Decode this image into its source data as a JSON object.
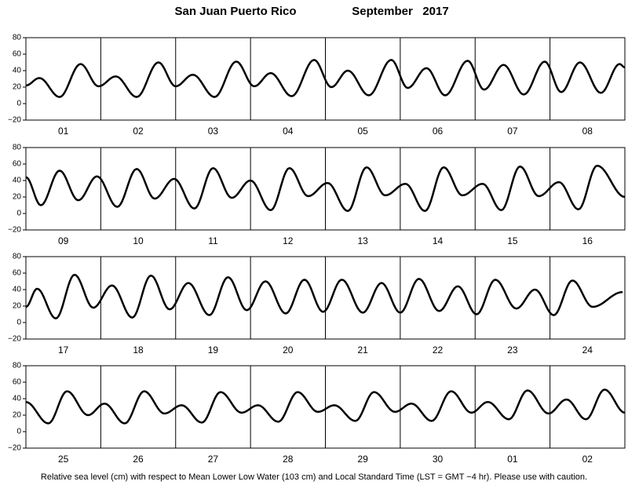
{
  "header": {
    "title": "San Juan Puerto Rico",
    "date": "September   2017"
  },
  "footer": "Relative sea level (cm) with respect to Mean Lower Low Water (103 cm) and Local Standard Time (LST = GMT −4 hr). Please use with caution.",
  "chart_data": [
    {
      "type": "line",
      "xlim": [
        0,
        8
      ],
      "ylim": [
        -20,
        80
      ],
      "yticks": [
        {
          "value": -20,
          "label": "−20"
        },
        0,
        20,
        40,
        60,
        80
      ],
      "xticks": [
        {
          "value": 0.5,
          "label": "01"
        },
        {
          "value": 1.5,
          "label": "02"
        },
        {
          "value": 2.5,
          "label": "03"
        },
        {
          "value": 3.5,
          "label": "04"
        },
        {
          "value": 4.5,
          "label": "05"
        },
        {
          "value": 5.5,
          "label": "06"
        },
        {
          "value": 6.5,
          "label": "07"
        },
        {
          "value": 7.5,
          "label": "08"
        }
      ],
      "series": [
        {
          "color": "#000000",
          "x": [
            0,
            0.18,
            0.45,
            0.73,
            0.97,
            1.2,
            1.48,
            1.77,
            2.0,
            2.23,
            2.52,
            2.81,
            3.05,
            3.27,
            3.55,
            3.85,
            4.08,
            4.3,
            4.58,
            4.88,
            5.1,
            5.35,
            5.6,
            5.9,
            6.12,
            6.38,
            6.65,
            6.93,
            7.15,
            7.4,
            7.68,
            7.93,
            8.0
          ],
          "values": [
            22,
            31,
            8,
            48,
            21,
            33,
            8,
            50,
            21,
            35,
            8,
            51,
            21,
            37,
            9,
            53,
            20,
            40,
            10,
            53,
            19,
            43,
            10,
            52,
            17,
            47,
            11,
            51,
            14,
            50,
            13,
            48,
            44
          ]
        }
      ]
    },
    {
      "type": "line",
      "xlim": [
        0,
        8
      ],
      "ylim": [
        -20,
        80
      ],
      "yticks": [
        {
          "value": -20,
          "label": "−20"
        },
        0,
        20,
        40,
        60,
        80
      ],
      "xticks": [
        {
          "value": 0.5,
          "label": "09"
        },
        {
          "value": 1.5,
          "label": "10"
        },
        {
          "value": 2.5,
          "label": "11"
        },
        {
          "value": 3.5,
          "label": "12"
        },
        {
          "value": 4.5,
          "label": "13"
        },
        {
          "value": 5.5,
          "label": "14"
        },
        {
          "value": 6.5,
          "label": "15"
        },
        {
          "value": 7.5,
          "label": "16"
        }
      ],
      "series": [
        {
          "color": "#000000",
          "x": [
            0,
            0.2,
            0.45,
            0.7,
            0.95,
            1.22,
            1.48,
            1.72,
            1.98,
            2.25,
            2.5,
            2.75,
            3.0,
            3.27,
            3.52,
            3.77,
            4.03,
            4.3,
            4.55,
            4.8,
            5.07,
            5.33,
            5.58,
            5.83,
            6.1,
            6.35,
            6.6,
            6.85,
            7.12,
            7.38,
            7.63,
            8.0
          ],
          "values": [
            44,
            10,
            52,
            16,
            45,
            8,
            54,
            18,
            42,
            6,
            55,
            19,
            40,
            4,
            55,
            21,
            37,
            3,
            56,
            22,
            36,
            3,
            56,
            22,
            36,
            4,
            57,
            21,
            38,
            5,
            58,
            20
          ]
        }
      ]
    },
    {
      "type": "line",
      "xlim": [
        0,
        8
      ],
      "ylim": [
        -20,
        80
      ],
      "yticks": [
        {
          "value": -20,
          "label": "−20"
        },
        0,
        20,
        40,
        60,
        80
      ],
      "xticks": [
        {
          "value": 0.5,
          "label": "17"
        },
        {
          "value": 1.5,
          "label": "18"
        },
        {
          "value": 2.5,
          "label": "19"
        },
        {
          "value": 3.5,
          "label": "20"
        },
        {
          "value": 4.5,
          "label": "21"
        },
        {
          "value": 5.5,
          "label": "22"
        },
        {
          "value": 6.5,
          "label": "23"
        },
        {
          "value": 7.5,
          "label": "24"
        }
      ],
      "series": [
        {
          "color": "#000000",
          "x": [
            0,
            0.15,
            0.4,
            0.65,
            0.9,
            1.15,
            1.42,
            1.67,
            1.92,
            2.17,
            2.45,
            2.7,
            2.95,
            3.2,
            3.47,
            3.72,
            3.97,
            4.22,
            4.5,
            4.75,
            5.0,
            5.25,
            5.52,
            5.77,
            6.02,
            6.27,
            6.55,
            6.8,
            7.05,
            7.3,
            7.57,
            7.97
          ],
          "values": [
            19,
            41,
            5,
            58,
            18,
            45,
            6,
            57,
            16,
            48,
            9,
            55,
            15,
            50,
            11,
            52,
            13,
            52,
            12,
            48,
            12,
            53,
            14,
            44,
            10,
            52,
            17,
            40,
            9,
            51,
            19,
            37
          ]
        }
      ]
    },
    {
      "type": "line",
      "xlim": [
        0,
        8
      ],
      "ylim": [
        -20,
        80
      ],
      "yticks": [
        {
          "value": -20,
          "label": "−20"
        },
        0,
        20,
        40,
        60,
        80
      ],
      "xticks": [
        {
          "value": 0.5,
          "label": "25"
        },
        {
          "value": 1.5,
          "label": "26"
        },
        {
          "value": 2.5,
          "label": "27"
        },
        {
          "value": 3.5,
          "label": "28"
        },
        {
          "value": 4.5,
          "label": "29"
        },
        {
          "value": 5.5,
          "label": "30"
        },
        {
          "value": 6.5,
          "label": "01"
        },
        {
          "value": 7.5,
          "label": "02"
        }
      ],
      "series": [
        {
          "color": "#000000",
          "x": [
            0,
            0.3,
            0.55,
            0.83,
            1.05,
            1.32,
            1.58,
            1.85,
            2.08,
            2.35,
            2.6,
            2.88,
            3.1,
            3.37,
            3.63,
            3.9,
            4.12,
            4.4,
            4.65,
            4.93,
            5.15,
            5.42,
            5.68,
            5.95,
            6.17,
            6.45,
            6.7,
            6.98,
            7.22,
            7.48,
            7.73,
            8.0
          ],
          "values": [
            36,
            10,
            49,
            20,
            34,
            10,
            49,
            22,
            32,
            11,
            48,
            23,
            32,
            12,
            48,
            24,
            32,
            13,
            48,
            24,
            34,
            13,
            49,
            23,
            36,
            15,
            50,
            22,
            39,
            15,
            51,
            23
          ]
        }
      ]
    }
  ]
}
